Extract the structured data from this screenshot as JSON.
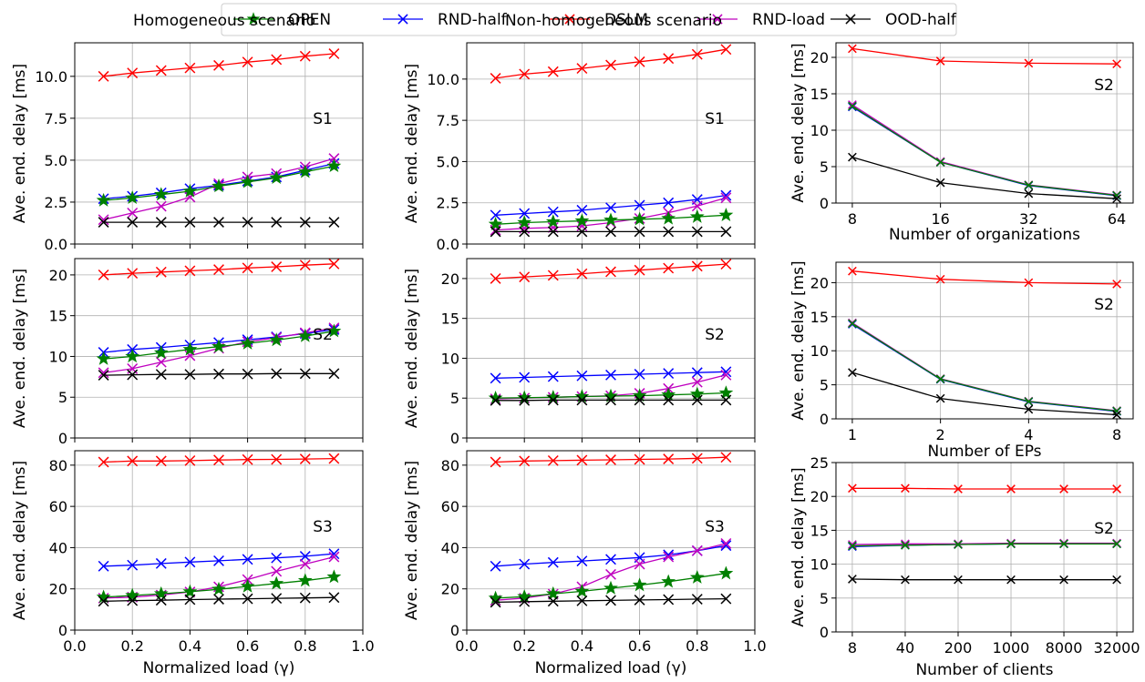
{
  "legend": [
    {
      "name": "OPEN",
      "color": "#008000",
      "marker": "star"
    },
    {
      "name": "RND-half",
      "color": "#0000ff",
      "marker": "x"
    },
    {
      "name": "DSLM",
      "color": "#ff0000",
      "marker": "x"
    },
    {
      "name": "RND-load",
      "color": "#bf00bf",
      "marker": "x"
    },
    {
      "name": "OOD-half",
      "color": "#000000",
      "marker": "x"
    }
  ],
  "columns": {
    "left_title": "Homogeneous scenario",
    "middle_title": "Non-homogeneous scenario"
  },
  "chart_data": [
    {
      "id": "hom-s1",
      "type": "line",
      "tag": "S1",
      "ylabel": "Ave. end. delay [ms]",
      "xlabel": "",
      "ylim": [
        0,
        12
      ],
      "yticks": [
        "0.0",
        "2.5",
        "5.0",
        "7.5",
        "10.0"
      ],
      "ytick_values": [
        0,
        2.5,
        5,
        7.5,
        10
      ],
      "xlim": [
        0,
        1.0
      ],
      "xticks": [],
      "grid": true,
      "x": [
        0.1,
        0.2,
        0.3,
        0.4,
        0.5,
        0.6,
        0.7,
        0.8,
        0.9
      ],
      "series": [
        {
          "name": "DSLM",
          "values": [
            10.0,
            10.2,
            10.35,
            10.5,
            10.65,
            10.85,
            11.0,
            11.2,
            11.35
          ]
        },
        {
          "name": "RND-half",
          "values": [
            2.7,
            2.85,
            3.05,
            3.3,
            3.5,
            3.75,
            4.0,
            4.4,
            4.8
          ]
        },
        {
          "name": "RND-load",
          "values": [
            1.45,
            1.85,
            2.25,
            2.8,
            3.6,
            4.0,
            4.2,
            4.6,
            5.1
          ]
        },
        {
          "name": "OPEN",
          "values": [
            2.6,
            2.75,
            2.95,
            3.15,
            3.45,
            3.7,
            3.95,
            4.3,
            4.65
          ]
        },
        {
          "name": "OOD-half",
          "values": [
            1.3,
            1.3,
            1.3,
            1.3,
            1.3,
            1.3,
            1.3,
            1.3,
            1.3
          ]
        }
      ]
    },
    {
      "id": "hom-s2",
      "type": "line",
      "tag": "S2",
      "ylabel": "Ave. end. delay [ms]",
      "xlabel": "",
      "ylim": [
        0,
        22
      ],
      "yticks": [
        "0",
        "5",
        "10",
        "15",
        "20"
      ],
      "ytick_values": [
        0,
        5,
        10,
        15,
        20
      ],
      "xlim": [
        0,
        1.0
      ],
      "xticks": [],
      "grid": true,
      "x": [
        0.1,
        0.2,
        0.3,
        0.4,
        0.5,
        0.6,
        0.7,
        0.8,
        0.9
      ],
      "series": [
        {
          "name": "DSLM",
          "values": [
            20.0,
            20.2,
            20.35,
            20.5,
            20.65,
            20.85,
            21.0,
            21.2,
            21.35
          ]
        },
        {
          "name": "RND-half",
          "values": [
            10.5,
            10.85,
            11.1,
            11.4,
            11.7,
            12.05,
            12.4,
            12.8,
            13.3
          ]
        },
        {
          "name": "RND-load",
          "values": [
            8.0,
            8.5,
            9.3,
            10.1,
            11.0,
            11.8,
            12.3,
            12.9,
            13.5
          ]
        },
        {
          "name": "OPEN",
          "values": [
            9.7,
            10.0,
            10.45,
            10.85,
            11.2,
            11.6,
            12.0,
            12.5,
            13.1
          ]
        },
        {
          "name": "OOD-half",
          "values": [
            7.7,
            7.75,
            7.8,
            7.8,
            7.85,
            7.85,
            7.9,
            7.9,
            7.9
          ]
        }
      ]
    },
    {
      "id": "hom-s3",
      "type": "line",
      "tag": "S3",
      "ylabel": "Ave. end. delay [ms]",
      "xlabel": "Normalized load (γ)",
      "ylim": [
        0,
        87
      ],
      "yticks": [
        "0",
        "20",
        "40",
        "60",
        "80"
      ],
      "ytick_values": [
        0,
        20,
        40,
        60,
        80
      ],
      "xlim": [
        0,
        1.0
      ],
      "xticks": [
        "0.0",
        "0.2",
        "0.4",
        "0.6",
        "0.8",
        "1.0"
      ],
      "xtick_values": [
        0,
        0.2,
        0.4,
        0.6,
        0.8,
        1.0
      ],
      "grid": true,
      "x": [
        0.1,
        0.2,
        0.3,
        0.4,
        0.5,
        0.6,
        0.7,
        0.8,
        0.9
      ],
      "series": [
        {
          "name": "DSLM",
          "values": [
            81.5,
            82.0,
            82.0,
            82.2,
            82.5,
            82.7,
            82.8,
            83.0,
            83.2
          ]
        },
        {
          "name": "RND-half",
          "values": [
            31.0,
            31.5,
            32.3,
            33.0,
            33.6,
            34.3,
            35.0,
            35.8,
            37.0
          ]
        },
        {
          "name": "RND-load",
          "values": [
            15.5,
            16.0,
            17.0,
            18.5,
            21.0,
            24.5,
            28.5,
            32.0,
            35.5
          ]
        },
        {
          "name": "OPEN",
          "values": [
            16.0,
            16.8,
            17.6,
            18.6,
            19.8,
            21.2,
            22.6,
            24.0,
            25.8
          ]
        },
        {
          "name": "OOD-half",
          "values": [
            14.0,
            14.3,
            14.5,
            14.8,
            15.0,
            15.2,
            15.4,
            15.6,
            15.8
          ]
        }
      ]
    },
    {
      "id": "nonhom-s1",
      "type": "line",
      "tag": "S1",
      "ylabel": "Ave. end. delay [ms]",
      "xlabel": "",
      "ylim": [
        0,
        12.2
      ],
      "yticks": [
        "0.0",
        "2.5",
        "5.0",
        "7.5",
        "10.0"
      ],
      "ytick_values": [
        0,
        2.5,
        5,
        7.5,
        10
      ],
      "xlim": [
        0,
        1.0
      ],
      "xticks": [],
      "grid": true,
      "x": [
        0.1,
        0.2,
        0.3,
        0.4,
        0.5,
        0.6,
        0.7,
        0.8,
        0.9
      ],
      "series": [
        {
          "name": "DSLM",
          "values": [
            10.05,
            10.3,
            10.45,
            10.65,
            10.85,
            11.05,
            11.25,
            11.5,
            11.8
          ]
        },
        {
          "name": "RND-half",
          "values": [
            1.75,
            1.85,
            1.95,
            2.05,
            2.2,
            2.35,
            2.5,
            2.7,
            2.95
          ]
        },
        {
          "name": "RND-load",
          "values": [
            0.85,
            0.95,
            1.0,
            1.1,
            1.3,
            1.55,
            1.9,
            2.3,
            2.8
          ]
        },
        {
          "name": "OPEN",
          "values": [
            1.2,
            1.3,
            1.35,
            1.4,
            1.45,
            1.5,
            1.55,
            1.65,
            1.75
          ]
        },
        {
          "name": "OOD-half",
          "values": [
            0.75,
            0.75,
            0.75,
            0.75,
            0.75,
            0.75,
            0.75,
            0.75,
            0.75
          ]
        }
      ]
    },
    {
      "id": "nonhom-s2",
      "type": "line",
      "tag": "S2",
      "ylabel": "Ave. end. delay [ms]",
      "xlabel": "",
      "ylim": [
        0,
        22.5
      ],
      "yticks": [
        "0",
        "5",
        "10",
        "15",
        "20"
      ],
      "ytick_values": [
        0,
        5,
        10,
        15,
        20
      ],
      "xlim": [
        0,
        1.0
      ],
      "xticks": [],
      "grid": true,
      "x": [
        0.1,
        0.2,
        0.3,
        0.4,
        0.5,
        0.6,
        0.7,
        0.8,
        0.9
      ],
      "series": [
        {
          "name": "DSLM",
          "values": [
            20.0,
            20.2,
            20.4,
            20.6,
            20.85,
            21.05,
            21.3,
            21.55,
            21.8
          ]
        },
        {
          "name": "RND-half",
          "values": [
            7.5,
            7.6,
            7.7,
            7.8,
            7.9,
            8.0,
            8.1,
            8.2,
            8.3
          ]
        },
        {
          "name": "RND-load",
          "values": [
            4.9,
            5.0,
            5.1,
            5.2,
            5.3,
            5.6,
            6.2,
            7.0,
            7.9
          ]
        },
        {
          "name": "OPEN",
          "values": [
            5.0,
            5.05,
            5.1,
            5.2,
            5.25,
            5.3,
            5.4,
            5.5,
            5.65
          ]
        },
        {
          "name": "OOD-half",
          "values": [
            4.7,
            4.7,
            4.75,
            4.75,
            4.75,
            4.75,
            4.75,
            4.75,
            4.75
          ]
        }
      ]
    },
    {
      "id": "nonhom-s3",
      "type": "line",
      "tag": "S3",
      "ylabel": "Ave. end. delay [ms]",
      "xlabel": "Normalized load (γ)",
      "ylim": [
        0,
        87
      ],
      "yticks": [
        "0",
        "20",
        "40",
        "60",
        "80"
      ],
      "ytick_values": [
        0,
        20,
        40,
        60,
        80
      ],
      "xlim": [
        0,
        1.0
      ],
      "xticks": [
        "0.0",
        "0.2",
        "0.4",
        "0.6",
        "0.8",
        "1.0"
      ],
      "xtick_values": [
        0,
        0.2,
        0.4,
        0.6,
        0.8,
        1.0
      ],
      "grid": true,
      "x": [
        0.1,
        0.2,
        0.3,
        0.4,
        0.5,
        0.6,
        0.7,
        0.8,
        0.9
      ],
      "series": [
        {
          "name": "DSLM",
          "values": [
            81.5,
            82.0,
            82.2,
            82.4,
            82.6,
            82.8,
            83.0,
            83.3,
            83.8
          ]
        },
        {
          "name": "RND-half",
          "values": [
            31.0,
            32.0,
            32.8,
            33.5,
            34.3,
            35.2,
            36.5,
            38.5,
            41.0
          ]
        },
        {
          "name": "RND-load",
          "values": [
            14.5,
            15.5,
            17.5,
            21.0,
            27.0,
            32.0,
            35.5,
            38.5,
            42.0
          ]
        },
        {
          "name": "OPEN",
          "values": [
            15.5,
            16.2,
            17.6,
            18.8,
            20.3,
            21.8,
            23.5,
            25.5,
            27.5
          ]
        },
        {
          "name": "OOD-half",
          "values": [
            13.5,
            13.8,
            14.0,
            14.2,
            14.4,
            14.6,
            14.8,
            15.0,
            15.2
          ]
        }
      ]
    },
    {
      "id": "orgs",
      "type": "line",
      "tag": "S2",
      "markers": "small",
      "ylabel": "Ave. end. delay [ms]",
      "xlabel": "Number of organizations",
      "ylim": [
        0,
        22
      ],
      "yticks": [
        "0",
        "5",
        "10",
        "15",
        "20"
      ],
      "ytick_values": [
        0,
        5,
        10,
        15,
        20
      ],
      "categories": [
        "8",
        "16",
        "32",
        "64"
      ],
      "grid": true,
      "series": [
        {
          "name": "DSLM",
          "values": [
            21.2,
            19.5,
            19.2,
            19.1
          ]
        },
        {
          "name": "RND-half",
          "values": [
            13.2,
            5.6,
            2.4,
            1.0
          ]
        },
        {
          "name": "RND-load",
          "values": [
            13.5,
            5.7,
            2.5,
            1.1
          ]
        },
        {
          "name": "OPEN",
          "values": [
            13.3,
            5.6,
            2.45,
            1.05
          ]
        },
        {
          "name": "OOD-half",
          "values": [
            6.3,
            2.8,
            1.3,
            0.6
          ]
        }
      ]
    },
    {
      "id": "eps",
      "type": "line",
      "tag": "S2",
      "markers": "small",
      "ylabel": "Ave. end. delay [ms]",
      "xlabel": "Number of EPs",
      "ylim": [
        0,
        23
      ],
      "yticks": [
        "0",
        "5",
        "10",
        "15",
        "20"
      ],
      "ytick_values": [
        0,
        5,
        10,
        15,
        20
      ],
      "categories": [
        "1",
        "2",
        "4",
        "8"
      ],
      "grid": true,
      "series": [
        {
          "name": "DSLM",
          "values": [
            21.7,
            20.5,
            20.0,
            19.8
          ]
        },
        {
          "name": "RND-half",
          "values": [
            13.9,
            5.8,
            2.5,
            1.1
          ]
        },
        {
          "name": "RND-load",
          "values": [
            14.1,
            5.9,
            2.6,
            1.2
          ]
        },
        {
          "name": "OPEN",
          "values": [
            14.0,
            5.85,
            2.55,
            1.15
          ]
        },
        {
          "name": "OOD-half",
          "values": [
            6.8,
            3.0,
            1.4,
            0.6
          ]
        }
      ]
    },
    {
      "id": "clients",
      "type": "line",
      "tag": "S2",
      "markers": "small",
      "ylabel": "Ave. end. delay [ms]",
      "xlabel": "Number of clients",
      "ylim": [
        0,
        25
      ],
      "yticks": [
        "0",
        "5",
        "10",
        "15",
        "20",
        "25"
      ],
      "ytick_values": [
        0,
        5,
        10,
        15,
        20,
        25
      ],
      "categories": [
        "8",
        "40",
        "200",
        "1000",
        "8000",
        "32000"
      ],
      "grid": true,
      "series": [
        {
          "name": "DSLM",
          "values": [
            21.2,
            21.2,
            21.1,
            21.1,
            21.1,
            21.1
          ]
        },
        {
          "name": "RND-half",
          "values": [
            12.6,
            12.8,
            12.9,
            13.0,
            13.0,
            13.0
          ]
        },
        {
          "name": "RND-load",
          "values": [
            12.9,
            13.0,
            13.0,
            13.1,
            13.1,
            13.1
          ]
        },
        {
          "name": "OPEN",
          "values": [
            12.7,
            12.8,
            12.9,
            13.0,
            13.0,
            13.0
          ]
        },
        {
          "name": "OOD-half",
          "values": [
            7.8,
            7.7,
            7.7,
            7.7,
            7.7,
            7.7
          ]
        }
      ]
    }
  ]
}
